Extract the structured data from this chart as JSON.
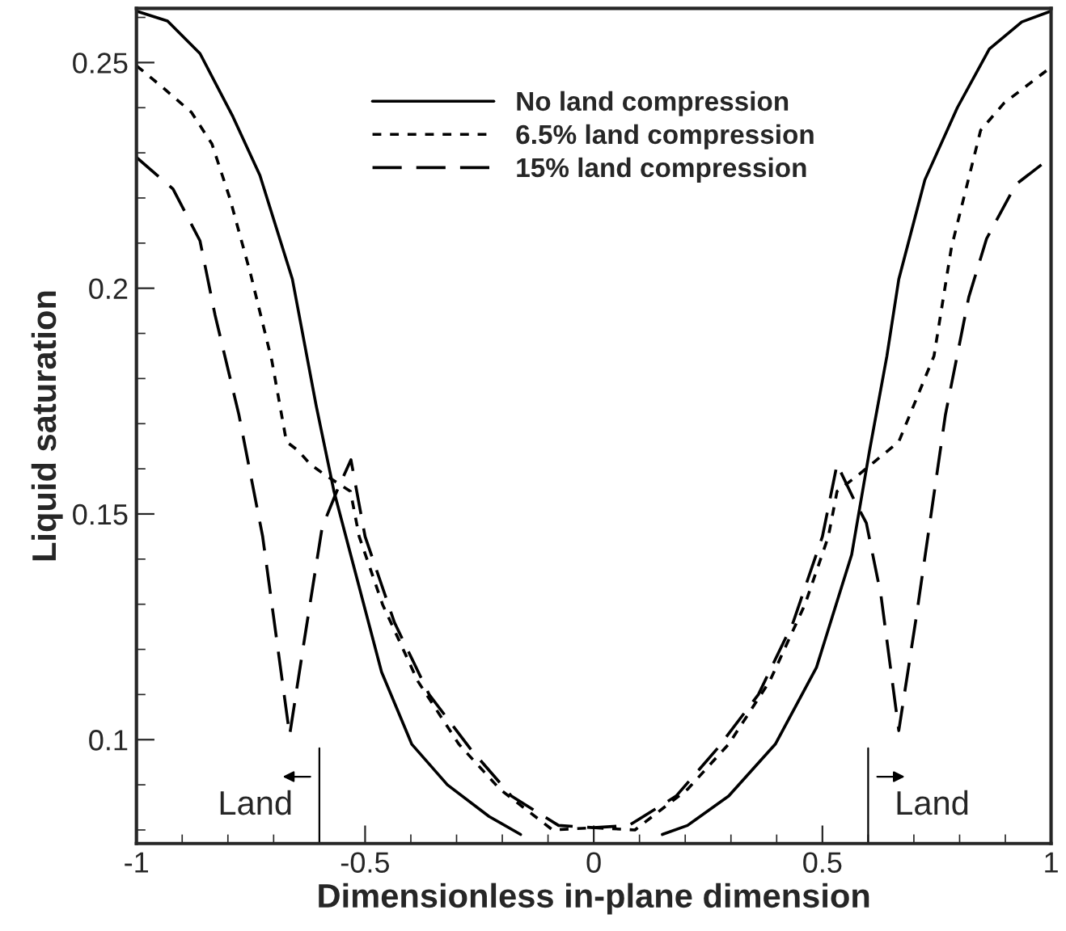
{
  "chart_data": {
    "type": "line",
    "xlabel": "Dimensionless in-plane dimension",
    "ylabel": "Liquid saturation",
    "xlim": [
      -1,
      1
    ],
    "xticks": [
      -1,
      -0.5,
      0,
      0.5,
      1
    ],
    "ylim": [
      0.077,
      0.262
    ],
    "yticks": [
      0.1,
      0.15,
      0.2,
      0.25
    ],
    "grid": false,
    "legend": "top",
    "marker": "none",
    "series": [
      {
        "name": "No land compression",
        "color": "#000000",
        "line_style": "solid",
        "x": [
          -1,
          -0.932,
          -0.861,
          -0.789,
          -0.73,
          -0.659,
          -0.607,
          -0.568,
          -0.516,
          -0.464,
          -0.398,
          -0.32,
          -0.229,
          -0.16,
          0,
          0.15,
          0.205,
          0.295,
          0.397,
          0.487,
          0.564,
          0.603,
          0.641,
          0.667,
          0.724,
          0.795,
          0.865,
          0.936,
          1
        ],
        "values": [
          0.2614,
          0.2592,
          0.252,
          0.238,
          0.225,
          0.202,
          0.174,
          0.155,
          0.135,
          0.115,
          0.099,
          0.09,
          0.083,
          0.079,
          null,
          0.079,
          0.081,
          0.0875,
          0.099,
          0.116,
          0.141,
          0.164,
          0.185,
          0.202,
          0.224,
          0.24,
          0.253,
          0.259,
          0.2614
        ]
      },
      {
        "name": "6.5% land compression",
        "color": "#000000",
        "line_style": "dotted",
        "x": [
          -1,
          -0.945,
          -0.88,
          -0.835,
          -0.796,
          -0.75,
          -0.704,
          -0.672,
          -0.646,
          -0.62,
          -0.587,
          -0.532,
          -0.513,
          -0.462,
          -0.385,
          -0.295,
          -0.205,
          -0.09,
          0,
          0.09,
          0.205,
          0.295,
          0.385,
          0.462,
          0.513,
          0.532,
          0.583,
          0.667,
          0.744,
          0.782,
          0.846,
          0.897,
          1
        ],
        "values": [
          0.2493,
          0.2447,
          0.239,
          0.232,
          0.22,
          0.203,
          0.184,
          0.166,
          0.164,
          0.161,
          0.1586,
          0.155,
          0.145,
          0.13,
          0.113,
          0.099,
          0.089,
          0.08,
          0.0805,
          0.08,
          0.089,
          0.099,
          0.113,
          0.13,
          0.145,
          0.155,
          0.159,
          0.166,
          0.185,
          0.209,
          0.235,
          0.241,
          0.249
        ]
      },
      {
        "name": "15% land compression",
        "color": "#000000",
        "line_style": "dashed",
        "x": [
          -1,
          -0.92,
          -0.861,
          -0.828,
          -0.776,
          -0.724,
          -0.665,
          -0.633,
          -0.594,
          -0.562,
          -0.531,
          -0.5,
          -0.436,
          -0.36,
          -0.27,
          -0.18,
          -0.077,
          0,
          0.077,
          0.18,
          0.27,
          0.36,
          0.436,
          0.5,
          0.532,
          0.57,
          0.596,
          0.628,
          0.667,
          0.705,
          0.769,
          0.82,
          0.859,
          0.923,
          1
        ],
        "values": [
          0.229,
          0.222,
          0.2105,
          0.194,
          0.172,
          0.145,
          0.101,
          0.122,
          0.147,
          0.155,
          0.162,
          0.145,
          0.126,
          0.11,
          0.098,
          0.0875,
          0.081,
          0.0805,
          0.081,
          0.0875,
          0.098,
          0.11,
          0.126,
          0.145,
          0.161,
          0.153,
          0.148,
          0.132,
          0.102,
          0.127,
          0.172,
          0.198,
          0.211,
          0.223,
          0.229
        ]
      }
    ],
    "ref_lines": [
      {
        "axis": "x",
        "value": -0.6,
        "label": "Land",
        "color": "#000000",
        "line_style": "solid"
      },
      {
        "axis": "x",
        "value": 0.6,
        "label": "Land",
        "color": "#000000",
        "line_style": "solid"
      }
    ]
  }
}
